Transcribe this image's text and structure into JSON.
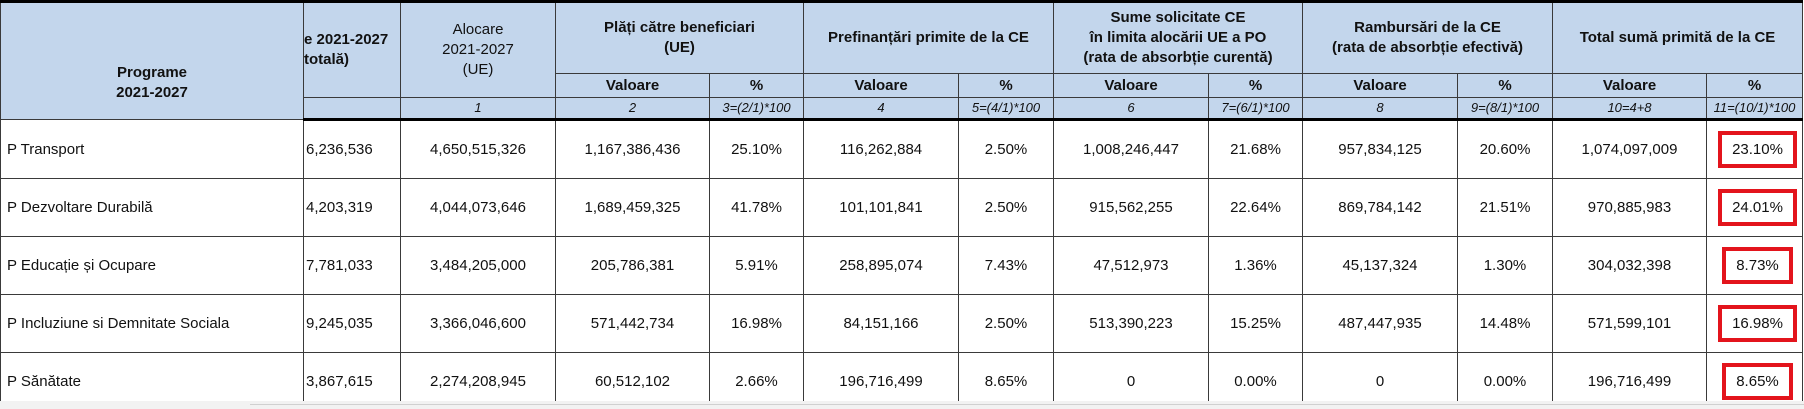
{
  "header": {
    "program_col": "Programe\n2021-2027",
    "col_total_clipped": "e 2021-2027\ntotală)",
    "col_alloc": "Alocare\n2021-2027\n(UE)",
    "col_plati": "Plăți către beneficiari\n(UE)",
    "col_prefin": "Prefinanțări primite de la CE",
    "col_sume": "Sume solicitate CE\nîn limita alocării UE a PO\n(rata de absorbție curentă)",
    "col_ramb": "Rambursări de la CE\n(rata de absorbție efectivă)",
    "col_total": "Total sumă primită de la CE",
    "valoare": "Valoare",
    "pct": "%",
    "formulas": [
      "1",
      "2",
      "3=(2/1)*100",
      "4",
      "5=(4/1)*100",
      "6",
      "7=(6/1)*100",
      "8",
      "9=(8/1)*100",
      "10=4+8",
      "11=(10/1)*100"
    ]
  },
  "rows": [
    {
      "program": "P Transport",
      "total": "6,236,536",
      "alloc": "4,650,515,326",
      "plati": "1,167,386,436",
      "plati_pct": "25.10%",
      "prefin": "116,262,884",
      "prefin_pct": "2.50%",
      "sume": "1,008,246,447",
      "sume_pct": "21.68%",
      "ramb": "957,834,125",
      "ramb_pct": "20.60%",
      "tot": "1,074,097,009",
      "tot_pct": "23.10%"
    },
    {
      "program": "P Dezvoltare Durabilă",
      "total": "4,203,319",
      "alloc": "4,044,073,646",
      "plati": "1,689,459,325",
      "plati_pct": "41.78%",
      "prefin": "101,101,841",
      "prefin_pct": "2.50%",
      "sume": "915,562,255",
      "sume_pct": "22.64%",
      "ramb": "869,784,142",
      "ramb_pct": "21.51%",
      "tot": "970,885,983",
      "tot_pct": "24.01%"
    },
    {
      "program": "P Educație și Ocupare",
      "total": "7,781,033",
      "alloc": "3,484,205,000",
      "plati": "205,786,381",
      "plati_pct": "5.91%",
      "prefin": "258,895,074",
      "prefin_pct": "7.43%",
      "sume": "47,512,973",
      "sume_pct": "1.36%",
      "ramb": "45,137,324",
      "ramb_pct": "1.30%",
      "tot": "304,032,398",
      "tot_pct": "8.73%"
    },
    {
      "program": "P Incluziune si Demnitate Sociala",
      "total": "9,245,035",
      "alloc": "3,366,046,600",
      "plati": "571,442,734",
      "plati_pct": "16.98%",
      "prefin": "84,151,166",
      "prefin_pct": "2.50%",
      "sume": "513,390,223",
      "sume_pct": "15.25%",
      "ramb": "487,447,935",
      "ramb_pct": "14.48%",
      "tot": "571,599,101",
      "tot_pct": "16.98%"
    },
    {
      "program": "P Sănătate",
      "total": "3,867,615",
      "alloc": "2,274,208,945",
      "plati": "60,512,102",
      "plati_pct": "2.66%",
      "prefin": "196,716,499",
      "prefin_pct": "8.65%",
      "sume": "0",
      "sume_pct": "0.00%",
      "ramb": "0",
      "ramb_pct": "0.00%",
      "tot": "196,716,499",
      "tot_pct": "8.65%"
    }
  ],
  "colors": {
    "header_bg": "#c3d6ec",
    "highlight": "#e3141c",
    "border": "#3a3a3a"
  }
}
